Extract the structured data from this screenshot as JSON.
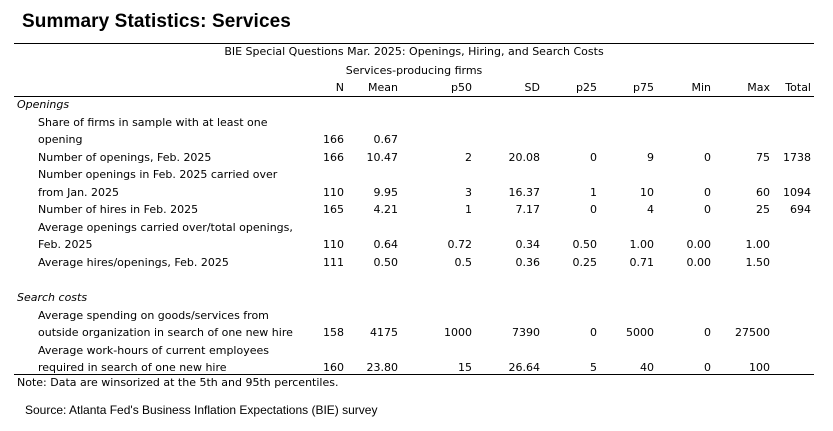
{
  "title": "Summary Statistics: Services",
  "caption": {
    "line1": "BIE Special Questions Mar. 2025: Openings, Hiring, and Search Costs",
    "line2": "Services-producing firms"
  },
  "columns": [
    "N",
    "Mean",
    "p50",
    "SD",
    "p25",
    "p75",
    "Min",
    "Max",
    "Total"
  ],
  "sections": [
    {
      "label": "Openings",
      "rows": [
        {
          "label": [
            "Share of firms in sample with at least one",
            "opening"
          ],
          "values": [
            "166",
            "0.67",
            "",
            "",
            "",
            "",
            "",
            "",
            ""
          ]
        },
        {
          "label": [
            "Number of openings, Feb. 2025"
          ],
          "values": [
            "166",
            "10.47",
            "2",
            "20.08",
            "0",
            "9",
            "0",
            "75",
            "1738"
          ]
        },
        {
          "label": [
            "Number openings in Feb. 2025 carried over",
            "from Jan. 2025"
          ],
          "values": [
            "110",
            "9.95",
            "3",
            "16.37",
            "1",
            "10",
            "0",
            "60",
            "1094"
          ]
        },
        {
          "label": [
            "Number of hires in Feb. 2025"
          ],
          "values": [
            "165",
            "4.21",
            "1",
            "7.17",
            "0",
            "4",
            "0",
            "25",
            "694"
          ]
        },
        {
          "label": [
            "Average openings carried over/total openings,",
            "Feb. 2025"
          ],
          "values": [
            "110",
            "0.64",
            "0.72",
            "0.34",
            "0.50",
            "1.00",
            "0.00",
            "1.00",
            ""
          ]
        },
        {
          "label": [
            "Average hires/openings, Feb. 2025"
          ],
          "values": [
            "111",
            "0.50",
            "0.5",
            "0.36",
            "0.25",
            "0.71",
            "0.00",
            "1.50",
            ""
          ]
        }
      ]
    },
    {
      "label": "Search costs",
      "rows": [
        {
          "label": [
            "Average spending on goods/services from",
            "outside organization in search of one new hire"
          ],
          "values": [
            "158",
            "4175",
            "1000",
            "7390",
            "0",
            "5000",
            "0",
            "27500",
            ""
          ]
        },
        {
          "label": [
            "Average work-hours of current employees",
            "required in search of one new hire"
          ],
          "values": [
            "160",
            "23.80",
            "15",
            "26.64",
            "5",
            "40",
            "0",
            "100",
            ""
          ]
        }
      ]
    }
  ],
  "note": "Note: Data are winsorized at the 5th and 95th percentiles.",
  "source": "Source: Atlanta Fed's Business Inflation Expectations (BIE) survey"
}
